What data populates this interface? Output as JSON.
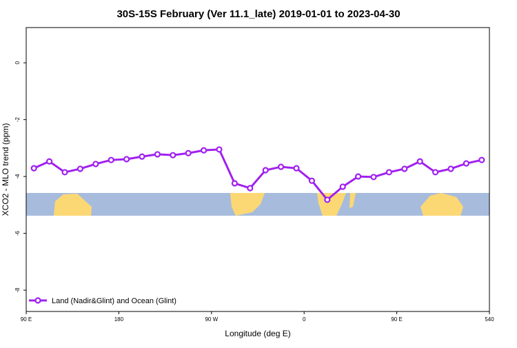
{
  "chart_data": {
    "type": "line",
    "title": "30S-15S February (Ver 11.1_late)   2019-01-01 to 2023-04-30",
    "x_label": "Longitude (deg E)",
    "y_label": "XCO2 - MLO trend (ppm)",
    "x": [
      97.5,
      112.5,
      127.5,
      142.5,
      157.5,
      172.5,
      187.5,
      202.5,
      217.5,
      232.5,
      247.5,
      262.5,
      277.5,
      292.5,
      307.5,
      322.5,
      337.5,
      352.5,
      367.5,
      382.5,
      397.5,
      412.5,
      427.5,
      442.5,
      457.5,
      472.5,
      487.5,
      502.5,
      517.5,
      532.5
    ],
    "series": [
      {
        "name": "Land (Nadir&Glint) and Ocean (Glint)",
        "color": "#a020f0",
        "values": [
          -3.71,
          -3.47,
          -3.85,
          -3.73,
          -3.56,
          -3.42,
          -3.39,
          -3.3,
          -3.22,
          -3.25,
          -3.18,
          -3.08,
          -3.05,
          -4.24,
          -4.41,
          -3.78,
          -3.66,
          -3.71,
          -4.15,
          -4.82,
          -4.36,
          -4.0,
          -4.02,
          -3.85,
          -3.73,
          -3.47,
          -3.85,
          -3.73,
          -3.54,
          -3.42
        ]
      }
    ],
    "xlim": [
      90,
      540
    ],
    "xticks": [
      {
        "value": 90,
        "label": "90 E"
      },
      180,
      {
        "value": 270,
        "label": "90 W"
      },
      {
        "value": 360,
        "label": "0"
      },
      {
        "value": 450,
        "label": "90 E"
      },
      540
    ],
    "ylim": [
      -8.75,
      1.24
    ],
    "yticks": [
      0,
      -2,
      -4,
      -6,
      -8
    ],
    "legend": "bottom left"
  }
}
